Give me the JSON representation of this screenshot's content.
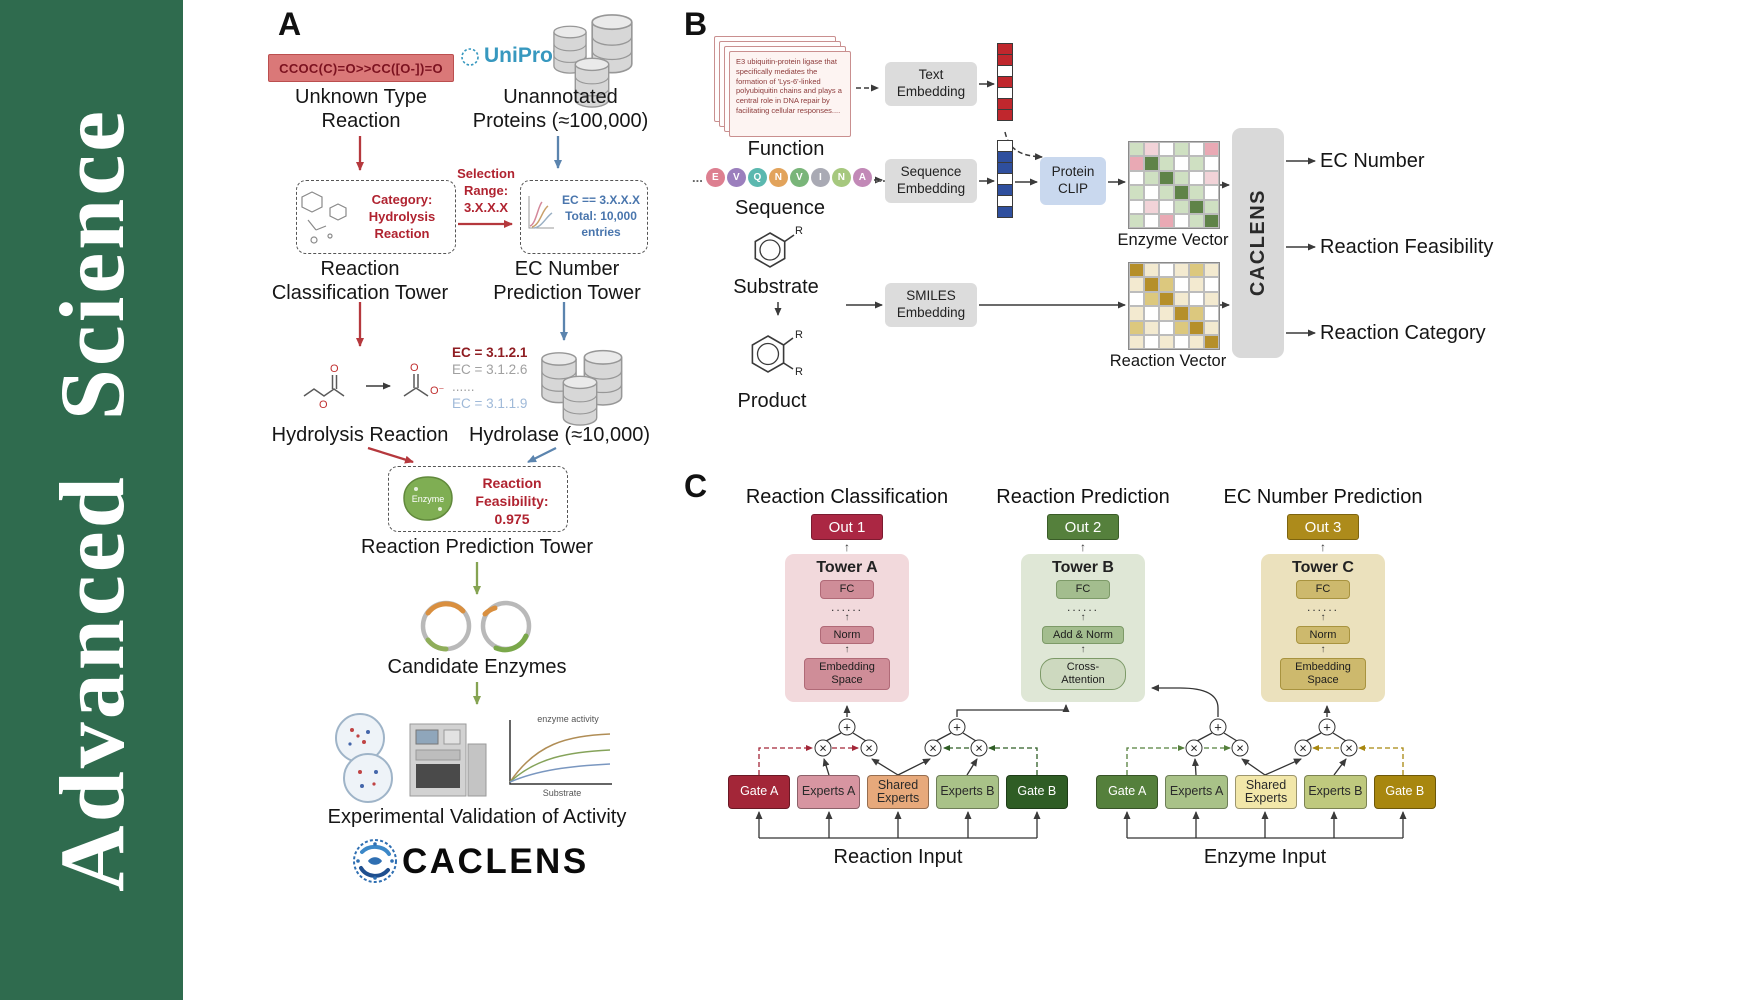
{
  "journal": {
    "title": "Advanced Science",
    "bg_color": "#2f6b4e"
  },
  "panelA": {
    "label": "A",
    "smiles": "CCOC(C)=O>>CC([O-])=O",
    "unknown_label": "Unknown Type\nReaction",
    "uniprot": "UniProt",
    "unannotated_label": "Unannotated\nProteins (≈100,000)",
    "category_text": "Category:\nHydrolysis\nReaction",
    "selection_text": "Selection\nRange:\n3.X.X.X",
    "ec_range_text": "EC == 3.X.X.X\nTotal: 10,000\nentries",
    "classification_tower": "Reaction\nClassification Tower",
    "ec_tower": "EC Number\nPrediction Tower",
    "hydrolysis_label": "Hydrolysis Reaction",
    "ec_items": [
      {
        "text": "EC = 3.1.2.1",
        "color": "#8f1d22",
        "bold": true
      },
      {
        "text": "EC = 3.1.2.6",
        "color": "#a0a0a0",
        "bold": false
      },
      {
        "text": "......",
        "color": "#a0a0a0",
        "bold": false
      },
      {
        "text": "EC = 3.1.1.9",
        "color": "#9fb9d8",
        "bold": false
      }
    ],
    "hydrolase_label": "Hydrolase (≈10,000)",
    "enzyme_badge": "Enzyme",
    "feasibility_text": "Reaction\nFeasibility:\n0.975",
    "prediction_tower": "Reaction Prediction Tower",
    "candidate_label": "Candidate Enzymes",
    "activity_plot": {
      "title": "enzyme activity",
      "xlabel": "Substrate"
    },
    "validation_label": "Experimental Validation of Activity",
    "brand": "CACLENS"
  },
  "panelB": {
    "label": "B",
    "function_card": "E3 ubiquitin-protein ligase that specifically mediates the formation of 'Lys-6'-linked polyubiquitin chains and plays a central role in DNA repair by facilitating cellular responses....",
    "function_label": "Function",
    "ellipsis": "...",
    "sequence": {
      "letters": [
        "E",
        "V",
        "Q",
        "N",
        "V",
        "I",
        "N",
        "A"
      ],
      "colors": [
        "#dd7f90",
        "#9b7fbd",
        "#5bb8af",
        "#e2a35b",
        "#79b579",
        "#a9aab4",
        "#a6c87e",
        "#c289b7"
      ]
    },
    "sequence_label": "Sequence",
    "boxes": {
      "text_embedding": "Text\nEmbedding",
      "sequence_embedding": "Sequence\nEmbedding",
      "smiles_embedding": "SMILES\nEmbedding",
      "protein_clip": "Protein\nCLIP",
      "caclens": "CACLENS"
    },
    "substrate_label": "Substrate",
    "product_label": "Product",
    "r_group": "R",
    "text_vector": [
      "#c0272d",
      "#c0272d",
      "#ffffff",
      "#c0272d",
      "#ffffff",
      "#c0272d",
      "#c0272d"
    ],
    "sequence_vector": [
      "#ffffff",
      "#2f4f9e",
      "#2f4f9e",
      "#ffffff",
      "#2f4f9e",
      "#ffffff",
      "#2f4f9e"
    ],
    "enzyme_vector_label": "Enzyme Vector",
    "reaction_vector_label": "Reaction Vector",
    "enzyme_matrix": [
      [
        "#cfe0c2",
        "#f2d3d8",
        "#ffffff",
        "#cfe0c2",
        "#ffffff",
        "#e9a9b4"
      ],
      [
        "#e9a9b4",
        "#5f8348",
        "#cfe0c2",
        "#ffffff",
        "#cfe0c2",
        "#ffffff"
      ],
      [
        "#ffffff",
        "#cfe0c2",
        "#5f8348",
        "#cfe0c2",
        "#ffffff",
        "#f2d3d8"
      ],
      [
        "#cfe0c2",
        "#ffffff",
        "#cfe0c2",
        "#5f8348",
        "#cfe0c2",
        "#ffffff"
      ],
      [
        "#ffffff",
        "#f2d3d8",
        "#ffffff",
        "#cfe0c2",
        "#5f8348",
        "#cfe0c2"
      ],
      [
        "#cfe0c2",
        "#ffffff",
        "#e9a9b4",
        "#ffffff",
        "#cfe0c2",
        "#5f8348"
      ]
    ],
    "reaction_matrix": [
      [
        "#b58f2a",
        "#f3ead0",
        "#ffffff",
        "#f3ead0",
        "#dcc87e",
        "#f3ead0"
      ],
      [
        "#f3ead0",
        "#b58f2a",
        "#dcc87e",
        "#ffffff",
        "#f3ead0",
        "#ffffff"
      ],
      [
        "#ffffff",
        "#dcc87e",
        "#b58f2a",
        "#f3ead0",
        "#ffffff",
        "#f3ead0"
      ],
      [
        "#f3ead0",
        "#ffffff",
        "#f3ead0",
        "#b58f2a",
        "#dcc87e",
        "#ffffff"
      ],
      [
        "#dcc87e",
        "#f3ead0",
        "#ffffff",
        "#dcc87e",
        "#b58f2a",
        "#f3ead0"
      ],
      [
        "#f3ead0",
        "#ffffff",
        "#f3ead0",
        "#ffffff",
        "#f3ead0",
        "#b58f2a"
      ]
    ],
    "outputs": [
      "EC Number",
      "Reaction Feasibility",
      "Reaction Category"
    ]
  },
  "panelC": {
    "label": "C",
    "columns": [
      {
        "title": "Reaction Classification",
        "out_label": "Out 1",
        "out_bg": "#ab2743",
        "out_border": "#7c1b30"
      },
      {
        "title": "Reaction Prediction",
        "out_label": "Out 2",
        "out_bg": "#55803c",
        "out_border": "#3a5c28"
      },
      {
        "title": "EC Number Prediction",
        "out_label": "Out 3",
        "out_bg": "#ad8b1b",
        "out_border": "#7d640f"
      }
    ],
    "towers": [
      {
        "name": "Tower A",
        "fc": "FC",
        "dots": "......",
        "mid": "Norm",
        "base": "Embedding\nSpace",
        "base_oval": false,
        "bg": "#f2d9dc",
        "box_bg": "#cf8d98",
        "box_border": "#b06a77",
        "base_bg": "#cf8d98"
      },
      {
        "name": "Tower B",
        "fc": "FC",
        "dots": "......",
        "mid": "Add & Norm",
        "base": "Cross-\nAttention",
        "base_oval": true,
        "bg": "#dfe7d6",
        "box_bg": "#a3bd8e",
        "box_border": "#7d9a68",
        "base_bg": "#cdd9bf"
      },
      {
        "name": "Tower C",
        "fc": "FC",
        "dots": "......",
        "mid": "Norm",
        "base": "Embedding\nSpace",
        "base_oval": false,
        "bg": "#ebe1bd",
        "box_bg": "#cdb96d",
        "box_border": "#a8933f",
        "base_bg": "#cdb96d"
      }
    ],
    "moe_left": [
      {
        "label": "Gate A",
        "bg": "#a32638",
        "fg": "#ffffff"
      },
      {
        "label": "Experts A",
        "bg": "#d795a1",
        "fg": "#2a2a2a"
      },
      {
        "label": "Shared\nExperts",
        "bg": "#e7a97b",
        "fg": "#2a2a2a"
      },
      {
        "label": "Experts B",
        "bg": "#a9c288",
        "fg": "#2a2a2a"
      },
      {
        "label": "Gate B",
        "bg": "#2f5d25",
        "fg": "#ffffff"
      }
    ],
    "moe_right": [
      {
        "label": "Gate A",
        "bg": "#55803c",
        "fg": "#ffffff"
      },
      {
        "label": "Experts A",
        "bg": "#a9c288",
        "fg": "#2a2a2a"
      },
      {
        "label": "Shared\nExperts",
        "bg": "#f2e7a9",
        "fg": "#2a2a2a"
      },
      {
        "label": "Experts B",
        "bg": "#bfc97e",
        "fg": "#2a2a2a"
      },
      {
        "label": "Gate B",
        "bg": "#a8870f",
        "fg": "#ffffff"
      }
    ],
    "input_left": "Reaction Input",
    "input_right": "Enzyme Input"
  }
}
